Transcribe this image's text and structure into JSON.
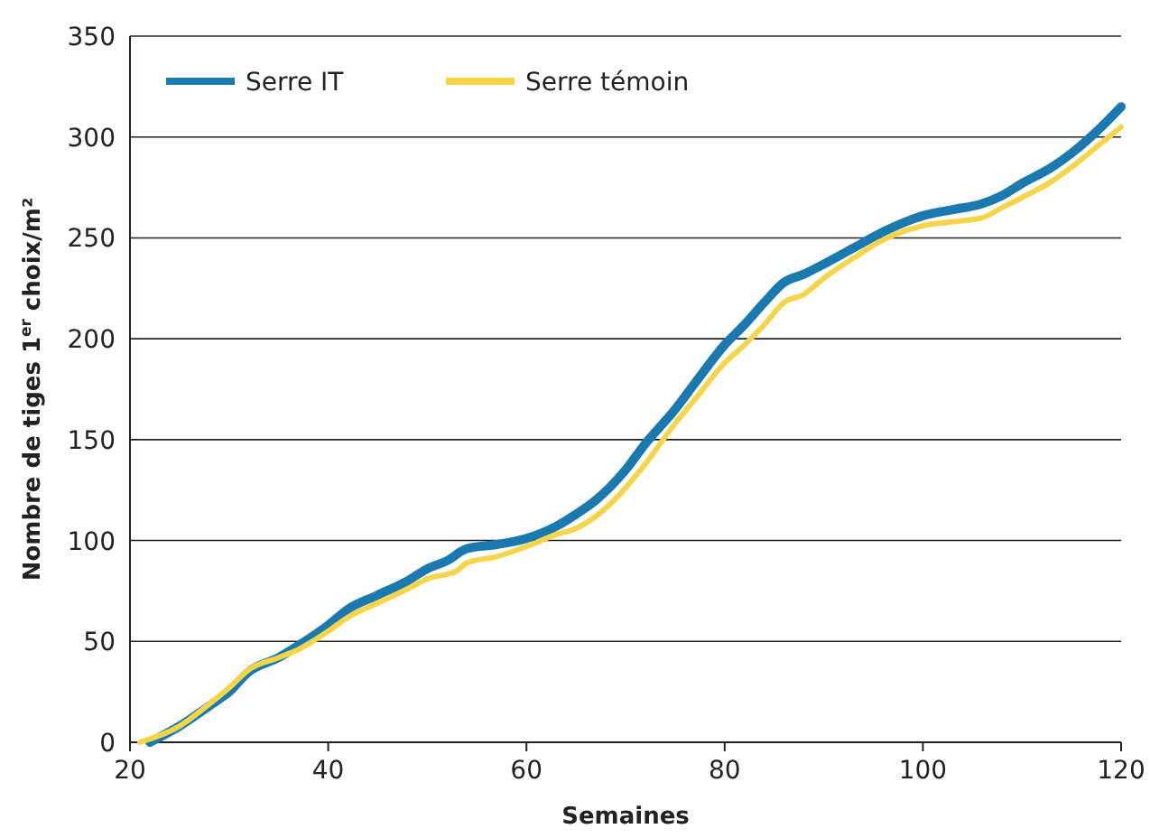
{
  "chart_data": {
    "type": "line",
    "xlabel": "Semaines",
    "ylabel": "Nombre de tiges 1$^{er}$ choix/m²",
    "xlim": [
      20,
      120
    ],
    "xticks": [
      20,
      40,
      60,
      80,
      100,
      120
    ],
    "ylim": [
      0,
      350
    ],
    "yticks": [
      0,
      50,
      100,
      150,
      200,
      250,
      300,
      350
    ],
    "grid": "y",
    "legend": "top left",
    "marker": "none",
    "line_style": "solid",
    "series": [
      {
        "name": "Serre IT",
        "color": "#1a7ab0",
        "x": [
          22,
          25,
          28,
          30,
          32,
          35,
          37,
          40,
          42,
          45,
          48,
          50,
          52,
          54,
          57,
          60,
          63,
          65,
          67,
          70,
          72,
          75,
          77,
          80,
          82,
          84,
          86,
          88,
          90,
          93,
          96,
          100,
          103,
          106,
          108,
          110,
          113,
          115,
          118,
          120
        ],
        "values": [
          0,
          8,
          18,
          25,
          35,
          42,
          48,
          58,
          66,
          73,
          80,
          86,
          90,
          96,
          98,
          101,
          107,
          113,
          120,
          135,
          148,
          165,
          178,
          197,
          207,
          218,
          228,
          232,
          237,
          245,
          253,
          261,
          264,
          267,
          271,
          277,
          285,
          292,
          305,
          315
        ]
      },
      {
        "name": "Serre témoin",
        "color": "#f7d54a",
        "x": [
          21,
          25,
          28,
          30,
          32,
          35,
          37,
          40,
          42,
          45,
          48,
          50,
          53,
          54,
          57,
          60,
          63,
          65,
          67,
          70,
          72,
          75,
          77,
          80,
          82,
          84,
          86,
          88,
          90,
          93,
          96,
          100,
          103,
          106,
          108,
          110,
          113,
          115,
          118,
          120
        ],
        "values": [
          0,
          8,
          19,
          27,
          36,
          42,
          46,
          55,
          62,
          69,
          76,
          81,
          85,
          89,
          92,
          97,
          103,
          106,
          112,
          126,
          138,
          158,
          170,
          188,
          197,
          207,
          218,
          222,
          230,
          240,
          249,
          256,
          258,
          260,
          265,
          270,
          278,
          285,
          297,
          305
        ]
      }
    ]
  }
}
